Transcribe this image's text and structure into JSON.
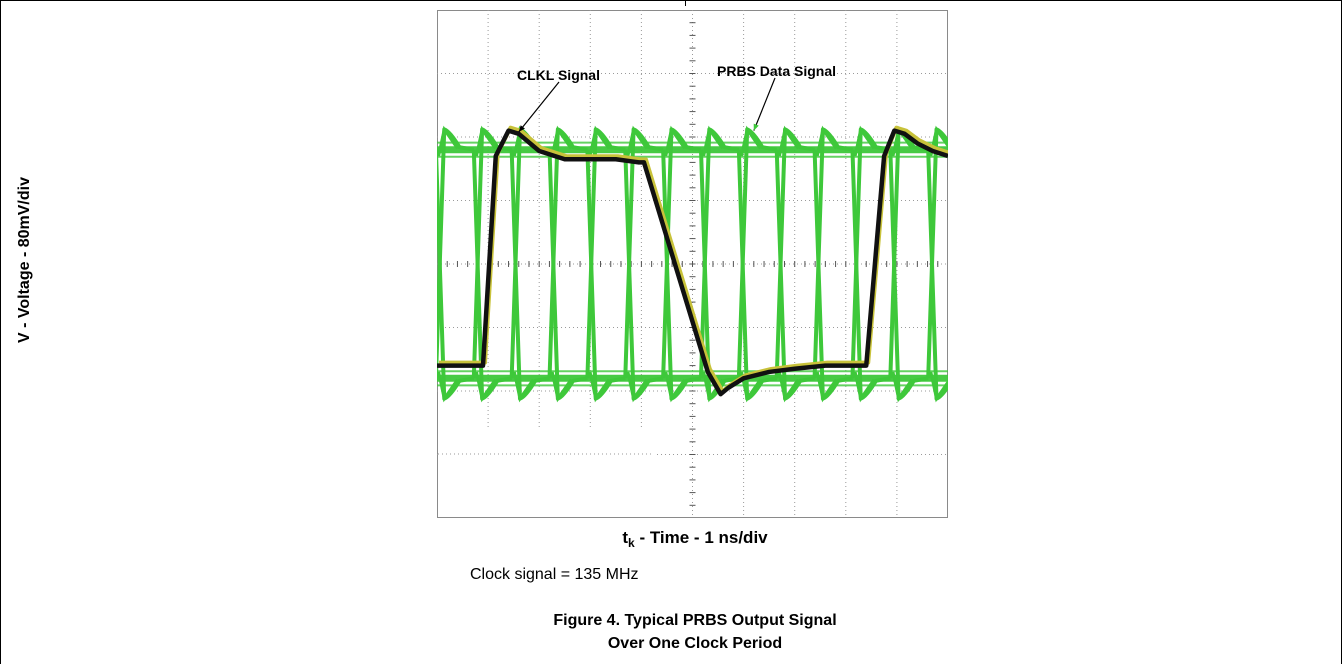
{
  "chart_data": {
    "type": "line",
    "ylabel": "V - Voltage - 80mV/div",
    "xlabel": {
      "symbol": "t",
      "subscript": "k",
      "text": " - Time - 1 ns/div"
    },
    "x_unit": "ns",
    "y_unit": "mV",
    "xlim": [
      -5,
      5
    ],
    "ylim": [
      -400,
      400
    ],
    "x_divisions": 10,
    "y_divisions": 8,
    "grid": true,
    "annotations": [
      {
        "text": "CLKL Signal",
        "target_series": "CLKL Signal",
        "target": [
          -3.4,
          208
        ]
      },
      {
        "text": "PRBS Data Signal",
        "target_series": "PRBS Data Signal",
        "target": [
          1.2,
          210
        ]
      }
    ],
    "series": [
      {
        "name": "CLKL Signal",
        "color": "#111111",
        "x": [
          -5.0,
          -4.5,
          -4.1,
          -3.85,
          -3.6,
          -3.4,
          -3.0,
          -2.5,
          -2.0,
          -1.5,
          -1.05,
          -0.95,
          0.3,
          0.55,
          0.7,
          1.0,
          1.5,
          2.0,
          2.6,
          3.4,
          3.75,
          3.95,
          4.15,
          4.4,
          4.7,
          5.0
        ],
        "y": [
          -160,
          -160,
          -160,
          170,
          210,
          205,
          178,
          165,
          165,
          165,
          160,
          160,
          -170,
          -205,
          -195,
          -180,
          -170,
          -165,
          -160,
          -160,
          170,
          210,
          205,
          190,
          178,
          170
        ]
      },
      {
        "name": "PRBS Data Signal",
        "color": "#3ec83a",
        "unit_interval_ns": 0.741,
        "high_level_mV": 180,
        "low_level_mV": -180,
        "overshoot_mV": 32
      }
    ]
  },
  "labels": {
    "clock_note": "Clock signal = 135 MHz",
    "figure_line1": "Figure 4. Typical PRBS Output Signal",
    "figure_line2": "Over One Clock Period"
  },
  "colors": {
    "screen_background": "#ffffff",
    "grid": "#9a9a9a",
    "prbs": "#3ec83a",
    "clock": "#111111",
    "clock_shadow": "#c8c23a"
  }
}
